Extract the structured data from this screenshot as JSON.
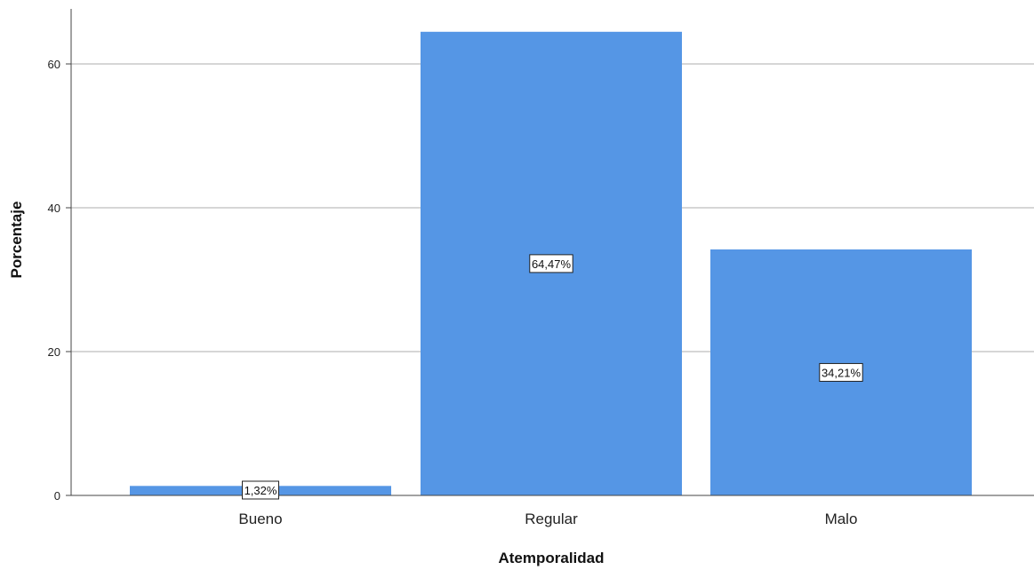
{
  "chart_data": {
    "type": "bar",
    "categories": [
      "Bueno",
      "Regular",
      "Malo"
    ],
    "values": [
      1.32,
      64.47,
      34.21
    ],
    "data_labels": [
      "1,32%",
      "64,47%",
      "34,21%"
    ],
    "xlabel": "Atemporalidad",
    "ylabel": "Porcentaje",
    "ylim": [
      0,
      67.8
    ],
    "yticks": [
      0,
      20,
      40,
      60
    ],
    "ytick_labels": [
      "0",
      "20",
      "40",
      "60"
    ],
    "grid": true,
    "bar_color": "#5596e5",
    "grid_color": "#c9c9c9"
  }
}
